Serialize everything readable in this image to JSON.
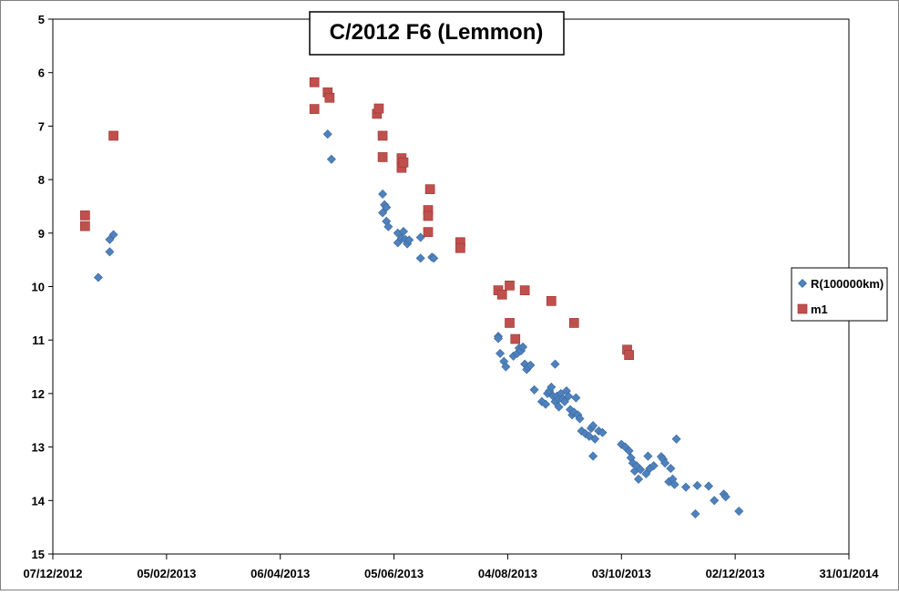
{
  "chart_data": {
    "type": "scatter",
    "title": "C/2012 F6 (Lemmon)",
    "xlabel": "",
    "ylabel": "",
    "x_type": "date",
    "y_inverted": true,
    "xlim": [
      "2012-12-07",
      "2014-01-31"
    ],
    "ylim": [
      5,
      15
    ],
    "x_ticks": [
      "07/12/2012",
      "05/02/2013",
      "06/04/2013",
      "05/06/2013",
      "04/08/2013",
      "03/10/2013",
      "02/12/2013",
      "31/01/2014"
    ],
    "y_ticks": [
      "5",
      "6",
      "7",
      "8",
      "9",
      "10",
      "11",
      "12",
      "13",
      "14",
      "15"
    ],
    "grid": false,
    "legend_position": "right",
    "series": [
      {
        "name": "R(100000km)",
        "color": "#4F81BD",
        "marker": "diamond",
        "points": [
          [
            "2012-12-31",
            9.83
          ],
          [
            "2013-01-06",
            9.35
          ],
          [
            "2013-01-06",
            9.12
          ],
          [
            "2013-01-08",
            9.03
          ],
          [
            "2013-05-01",
            7.15
          ],
          [
            "2013-05-03",
            7.62
          ],
          [
            "2013-05-30",
            8.27
          ],
          [
            "2013-05-30",
            8.62
          ],
          [
            "2013-05-31",
            8.47
          ],
          [
            "2013-06-01",
            8.52
          ],
          [
            "2013-06-01",
            8.78
          ],
          [
            "2013-06-02",
            8.88
          ],
          [
            "2013-06-07",
            9.0
          ],
          [
            "2013-06-07",
            9.18
          ],
          [
            "2013-06-09",
            9.1
          ],
          [
            "2013-06-10",
            8.97
          ],
          [
            "2013-06-11",
            9.12
          ],
          [
            "2013-06-12",
            9.2
          ],
          [
            "2013-06-13",
            9.13
          ],
          [
            "2013-06-19",
            9.08
          ],
          [
            "2013-06-19",
            9.47
          ],
          [
            "2013-06-25",
            9.45
          ],
          [
            "2013-06-26",
            9.47
          ],
          [
            "2013-07-30",
            10.93
          ],
          [
            "2013-07-30",
            10.97
          ],
          [
            "2013-07-31",
            11.25
          ],
          [
            "2013-08-02",
            11.4
          ],
          [
            "2013-08-03",
            11.5
          ],
          [
            "2013-08-07",
            11.3
          ],
          [
            "2013-08-09",
            11.25
          ],
          [
            "2013-08-10",
            11.15
          ],
          [
            "2013-08-11",
            11.2
          ],
          [
            "2013-08-12",
            11.13
          ],
          [
            "2013-08-13",
            11.45
          ],
          [
            "2013-08-14",
            11.55
          ],
          [
            "2013-08-15",
            11.5
          ],
          [
            "2013-08-16",
            11.47
          ],
          [
            "2013-08-18",
            11.93
          ],
          [
            "2013-08-22",
            12.15
          ],
          [
            "2013-08-24",
            12.2
          ],
          [
            "2013-08-25",
            12.0
          ],
          [
            "2013-08-26",
            11.95
          ],
          [
            "2013-08-27",
            11.88
          ],
          [
            "2013-08-28",
            12.05
          ],
          [
            "2013-08-29",
            12.15
          ],
          [
            "2013-08-29",
            11.45
          ],
          [
            "2013-08-30",
            12.05
          ],
          [
            "2013-08-31",
            12.1
          ],
          [
            "2013-08-31",
            12.25
          ],
          [
            "2013-09-01",
            12.0
          ],
          [
            "2013-09-02",
            12.1
          ],
          [
            "2013-09-03",
            12.15
          ],
          [
            "2013-09-04",
            11.95
          ],
          [
            "2013-09-05",
            12.05
          ],
          [
            "2013-09-06",
            12.3
          ],
          [
            "2013-09-07",
            12.4
          ],
          [
            "2013-09-08",
            12.35
          ],
          [
            "2013-09-09",
            12.08
          ],
          [
            "2013-09-10",
            12.4
          ],
          [
            "2013-09-11",
            12.47
          ],
          [
            "2013-09-12",
            12.7
          ],
          [
            "2013-09-14",
            12.75
          ],
          [
            "2013-09-16",
            12.8
          ],
          [
            "2013-09-17",
            12.65
          ],
          [
            "2013-09-18",
            12.6
          ],
          [
            "2013-09-19",
            12.85
          ],
          [
            "2013-09-18",
            13.17
          ],
          [
            "2013-09-21",
            12.7
          ],
          [
            "2013-09-23",
            12.73
          ],
          [
            "2013-10-03",
            12.95
          ],
          [
            "2013-10-05",
            13.0
          ],
          [
            "2013-10-07",
            13.07
          ],
          [
            "2013-10-08",
            13.2
          ],
          [
            "2013-10-09",
            13.3
          ],
          [
            "2013-10-10",
            13.45
          ],
          [
            "2013-10-11",
            13.35
          ],
          [
            "2013-10-12",
            13.6
          ],
          [
            "2013-10-13",
            13.42
          ],
          [
            "2013-10-16",
            13.5
          ],
          [
            "2013-10-18",
            13.4
          ],
          [
            "2013-10-17",
            13.17
          ],
          [
            "2013-10-20",
            13.35
          ],
          [
            "2013-10-24",
            13.18
          ],
          [
            "2013-10-25",
            13.23
          ],
          [
            "2013-10-26",
            13.3
          ],
          [
            "2013-10-28",
            13.65
          ],
          [
            "2013-10-29",
            13.4
          ],
          [
            "2013-10-30",
            13.6
          ],
          [
            "2013-10-31",
            13.7
          ],
          [
            "2013-11-01",
            12.85
          ],
          [
            "2013-11-06",
            13.75
          ],
          [
            "2013-11-12",
            13.72
          ],
          [
            "2013-11-11",
            14.25
          ],
          [
            "2013-11-18",
            13.73
          ],
          [
            "2013-11-21",
            14.0
          ],
          [
            "2013-11-26",
            13.88
          ],
          [
            "2013-11-27",
            13.93
          ],
          [
            "2013-12-04",
            14.2
          ]
        ]
      },
      {
        "name": "m1",
        "color": "#C0504D",
        "marker": "square",
        "points": [
          [
            "2012-12-24",
            8.67
          ],
          [
            "2012-12-24",
            8.87
          ],
          [
            "2013-01-08",
            7.18
          ],
          [
            "2013-04-24",
            6.18
          ],
          [
            "2013-04-24",
            6.68
          ],
          [
            "2013-05-01",
            6.37
          ],
          [
            "2013-05-02",
            6.47
          ],
          [
            "2013-05-27",
            6.77
          ],
          [
            "2013-05-28",
            6.67
          ],
          [
            "2013-05-30",
            7.18
          ],
          [
            "2013-05-30",
            7.58
          ],
          [
            "2013-06-09",
            7.6
          ],
          [
            "2013-06-09",
            7.78
          ],
          [
            "2013-06-10",
            7.68
          ],
          [
            "2013-06-24",
            8.18
          ],
          [
            "2013-06-23",
            8.57
          ],
          [
            "2013-06-23",
            8.68
          ],
          [
            "2013-06-23",
            8.98
          ],
          [
            "2013-07-10",
            9.17
          ],
          [
            "2013-07-10",
            9.28
          ],
          [
            "2013-07-30",
            10.07
          ],
          [
            "2013-08-01",
            10.15
          ],
          [
            "2013-08-05",
            9.98
          ],
          [
            "2013-08-05",
            10.68
          ],
          [
            "2013-08-08",
            10.98
          ],
          [
            "2013-08-13",
            10.07
          ],
          [
            "2013-08-27",
            10.27
          ],
          [
            "2013-09-08",
            10.68
          ],
          [
            "2013-10-06",
            11.18
          ],
          [
            "2013-10-07",
            11.28
          ]
        ]
      }
    ]
  }
}
